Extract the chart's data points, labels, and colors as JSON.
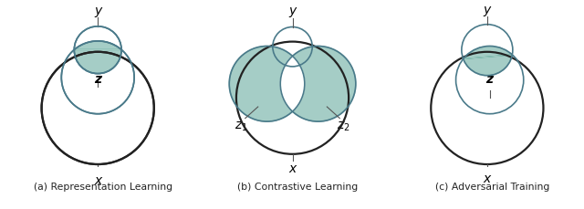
{
  "fig_width": 6.4,
  "fig_height": 2.3,
  "dpi": 100,
  "bg_color": "#ffffff",
  "teal_fill": "#6aada0",
  "teal_alpha": 0.6,
  "circle_edge_teal": "#4a7a8a",
  "circle_lw": 1.2,
  "large_circle_edge": "#222222",
  "large_circle_lw": 1.6,
  "captions": [
    "(a) Representation Learning",
    "(b) Contrastive Learning",
    "(c) Adversarial Training"
  ]
}
